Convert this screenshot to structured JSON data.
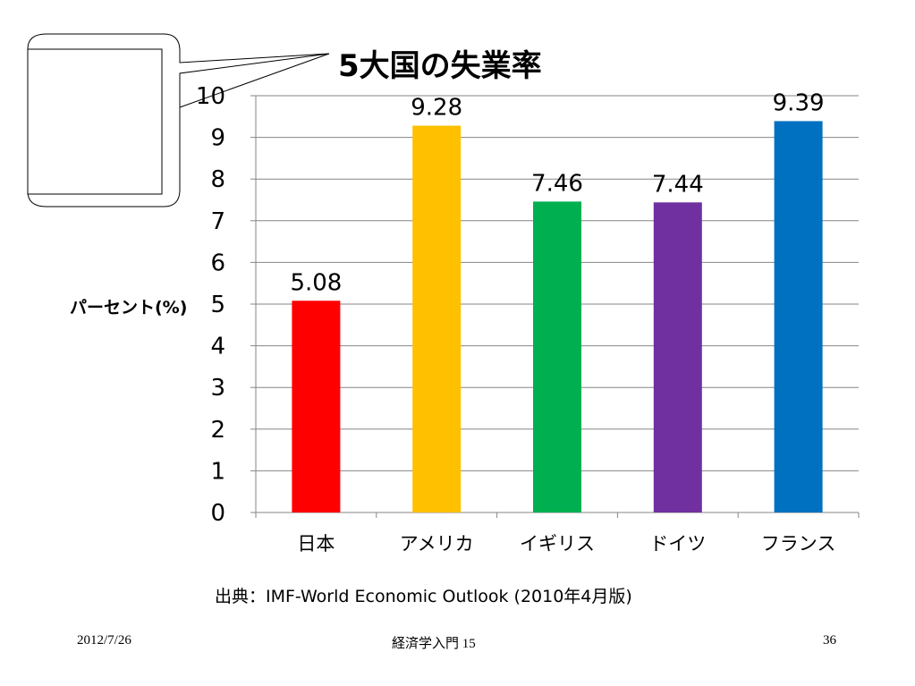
{
  "slide": {
    "title": "5大国の失業率",
    "source": "出典：IMF-World Economic Outlook (2010年4月版)",
    "footer": {
      "date": "2012/7/26",
      "course": "経済学入門 15",
      "page": "36"
    }
  },
  "chart_data": {
    "type": "bar",
    "title": "5大国の失業率",
    "ylabel": "パーセント(%)",
    "xlabel": "",
    "categories": [
      "日本",
      "アメリカ",
      "イギリス",
      "ドイツ",
      "フランス"
    ],
    "values": [
      5.08,
      9.28,
      7.46,
      7.44,
      9.39
    ],
    "value_labels": [
      "5.08",
      "9.28",
      "7.46",
      "7.44",
      "9.39"
    ],
    "colors": [
      "#ff0000",
      "#ffc000",
      "#00b050",
      "#7030a0",
      "#0070c0"
    ],
    "ylim": [
      0,
      10
    ],
    "yticks": [
      "0",
      "1",
      "2",
      "3",
      "4",
      "5",
      "6",
      "7",
      "8",
      "9",
      "10"
    ],
    "grid": true,
    "legend": "none"
  }
}
